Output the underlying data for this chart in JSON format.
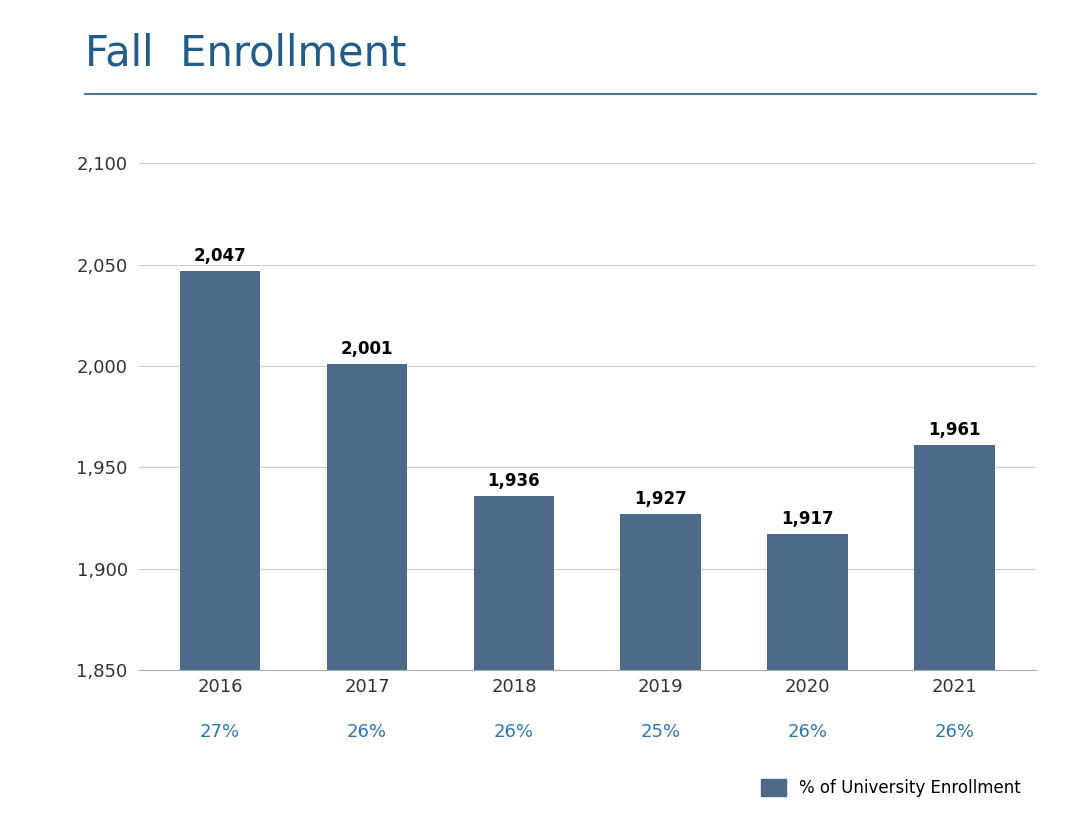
{
  "title": "Fall  Enrollment",
  "title_color": "#1f5c8b",
  "title_fontsize": 30,
  "categories": [
    "2016",
    "2017",
    "2018",
    "2019",
    "2020",
    "2021"
  ],
  "values": [
    2047,
    2001,
    1936,
    1927,
    1917,
    1961
  ],
  "percentages": [
    "27%",
    "26%",
    "26%",
    "25%",
    "26%",
    "26%"
  ],
  "bar_color": "#4d6a8a",
  "background_color": "#ffffff",
  "ylim": [
    1850,
    2100
  ],
  "yticks": [
    1850,
    1900,
    1950,
    2000,
    2050,
    2100
  ],
  "bar_label_fontsize": 12,
  "bar_label_color": "#000000",
  "bar_label_fontweight": "bold",
  "xtick_fontsize": 13,
  "ytick_fontsize": 13,
  "pct_fontsize": 13,
  "pct_color": "#2e75b6",
  "legend_label": "% of University Enrollment",
  "legend_fontsize": 12,
  "grid_color": "#cccccc",
  "title_underline_color": "#1f5c8b"
}
